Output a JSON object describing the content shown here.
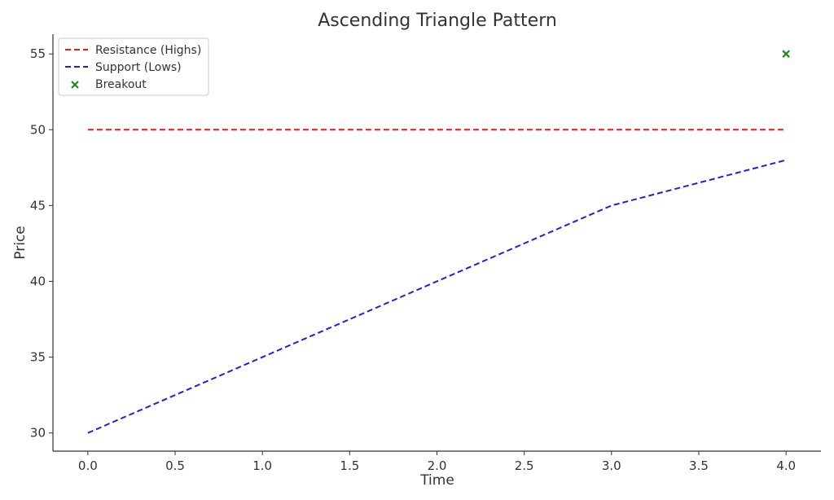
{
  "chart_data": {
    "type": "line",
    "title": "Ascending Triangle Pattern",
    "xlabel": "Time",
    "ylabel": "Price",
    "xlim": [
      -0.2,
      4.2
    ],
    "ylim": [
      28.8,
      56.3
    ],
    "xticks": [
      "0.0",
      "0.5",
      "1.0",
      "1.5",
      "2.0",
      "2.5",
      "3.0",
      "3.5",
      "4.0"
    ],
    "yticks": [
      "30",
      "35",
      "40",
      "45",
      "50",
      "55"
    ],
    "grid": false,
    "legend_position": "top-left",
    "series": [
      {
        "name": "Resistance (Highs)",
        "kind": "line",
        "style": "dashed",
        "color": "#e41a1c",
        "x": [
          0,
          1,
          2,
          3,
          4
        ],
        "y": [
          50,
          50,
          50,
          50,
          50
        ]
      },
      {
        "name": "Support (Lows)",
        "kind": "line",
        "style": "dashed",
        "color": "#1f1fe6",
        "x": [
          0,
          1,
          2,
          3,
          4
        ],
        "y": [
          30,
          35,
          40,
          45,
          48
        ]
      },
      {
        "name": "Breakout",
        "kind": "scatter",
        "marker": "x",
        "color": "#1a8a1a",
        "x": [
          4
        ],
        "y": [
          55
        ]
      }
    ]
  }
}
